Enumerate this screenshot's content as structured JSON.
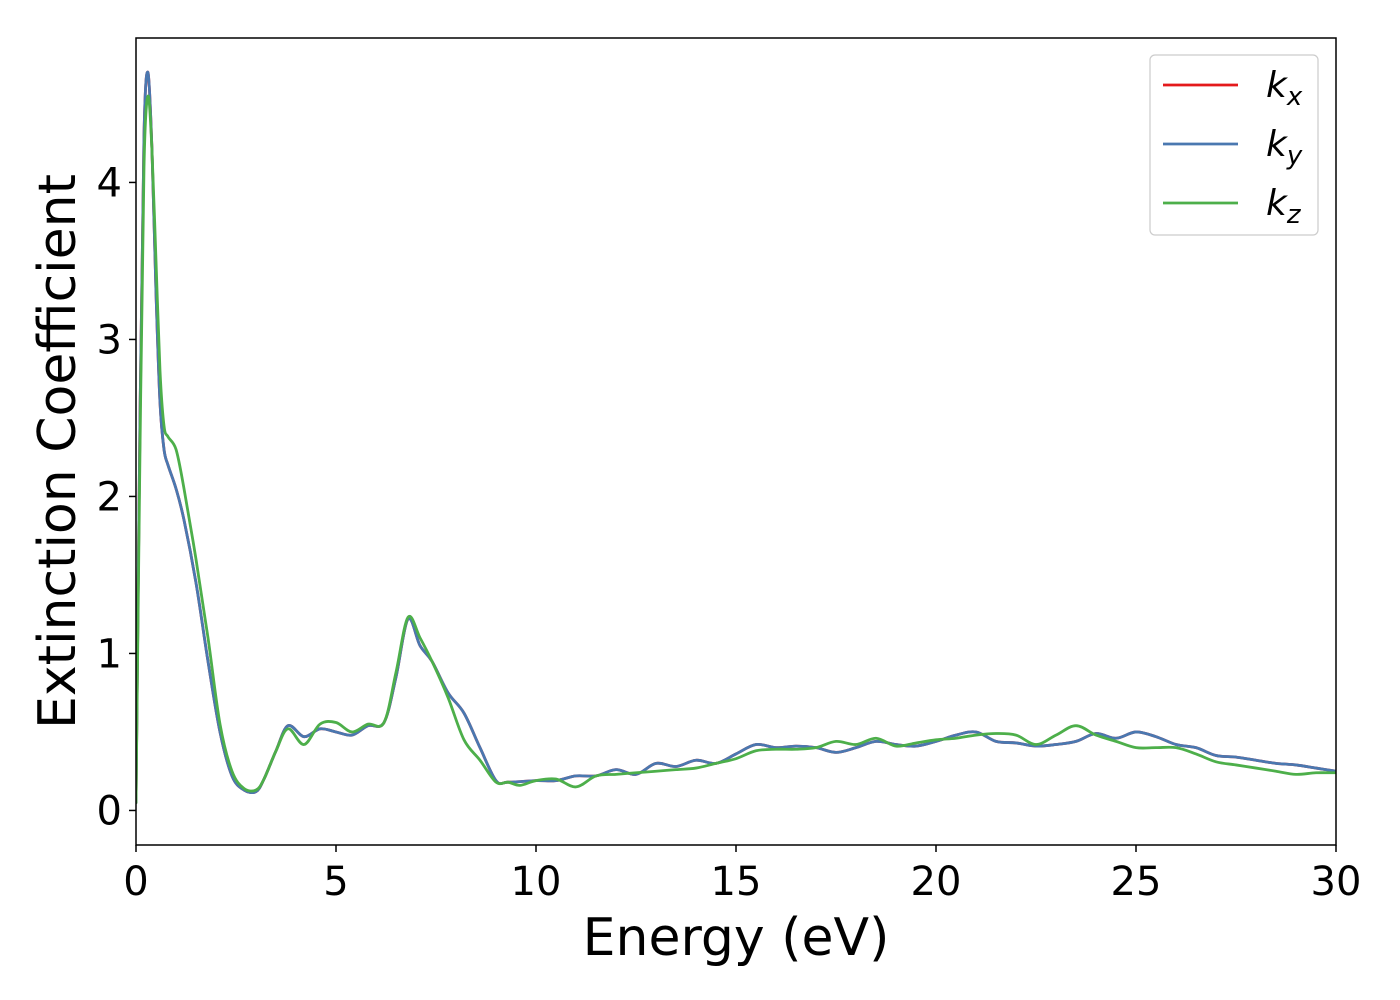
{
  "chart_data": {
    "type": "line",
    "title": "",
    "xlabel": "Energy (eV)",
    "ylabel": "Extinction Coefficient",
    "xlim": [
      0,
      30
    ],
    "ylim": [
      -0.22,
      4.92
    ],
    "xticks": [
      0,
      5,
      10,
      15,
      20,
      25,
      30
    ],
    "xtick_labels": [
      "0",
      "5",
      "10",
      "15",
      "20",
      "25",
      "30"
    ],
    "yticks": [
      0,
      1,
      2,
      3,
      4
    ],
    "ytick_labels": [
      "0",
      "1",
      "2",
      "3",
      "4"
    ],
    "grid": false,
    "legend_position": "top-right",
    "series": [
      {
        "name": "k_x",
        "legend_base": "k",
        "legend_sub": "x",
        "color": "#e41a1c",
        "x": [
          0,
          0.1,
          0.2,
          0.3,
          0.4,
          0.5,
          0.6,
          0.7,
          0.8,
          1.0,
          1.2,
          1.5,
          1.8,
          2.1,
          2.4,
          2.7,
          3.0,
          3.2,
          3.5,
          3.8,
          4.2,
          4.6,
          5.0,
          5.4,
          5.8,
          6.2,
          6.5,
          6.8,
          7.1,
          7.4,
          7.8,
          8.2,
          8.6,
          9.0,
          9.3,
          10.0,
          10.5,
          11.0,
          11.5,
          12.0,
          12.5,
          13.0,
          13.5,
          14.0,
          14.5,
          15.0,
          15.5,
          16.0,
          16.5,
          17.0,
          17.5,
          18.0,
          18.5,
          19.0,
          19.5,
          20.0,
          20.5,
          21.0,
          21.5,
          22.0,
          22.5,
          23.0,
          23.5,
          24.0,
          24.5,
          25.0,
          25.5,
          26.0,
          26.5,
          27.0,
          27.5,
          28.0,
          28.5,
          29.0,
          29.5,
          30.0
        ],
        "y": [
          0.05,
          2.5,
          4.3,
          4.7,
          4.2,
          3.3,
          2.6,
          2.3,
          2.2,
          2.05,
          1.85,
          1.45,
          0.95,
          0.5,
          0.22,
          0.13,
          0.12,
          0.2,
          0.38,
          0.54,
          0.47,
          0.52,
          0.5,
          0.48,
          0.54,
          0.56,
          0.85,
          1.22,
          1.05,
          0.95,
          0.75,
          0.62,
          0.4,
          0.19,
          0.18,
          0.19,
          0.19,
          0.22,
          0.22,
          0.26,
          0.23,
          0.3,
          0.28,
          0.32,
          0.3,
          0.36,
          0.42,
          0.4,
          0.41,
          0.4,
          0.37,
          0.4,
          0.44,
          0.42,
          0.41,
          0.44,
          0.48,
          0.5,
          0.44,
          0.43,
          0.41,
          0.42,
          0.44,
          0.49,
          0.46,
          0.5,
          0.47,
          0.42,
          0.4,
          0.35,
          0.34,
          0.32,
          0.3,
          0.29,
          0.27,
          0.25
        ]
      },
      {
        "name": "k_y",
        "legend_base": "k",
        "legend_sub": "y",
        "color": "#4a78b0",
        "x": [
          0,
          0.1,
          0.2,
          0.3,
          0.4,
          0.5,
          0.6,
          0.7,
          0.8,
          1.0,
          1.2,
          1.5,
          1.8,
          2.1,
          2.4,
          2.7,
          3.0,
          3.2,
          3.5,
          3.8,
          4.2,
          4.6,
          5.0,
          5.4,
          5.8,
          6.2,
          6.5,
          6.8,
          7.1,
          7.4,
          7.8,
          8.2,
          8.6,
          9.0,
          9.3,
          10.0,
          10.5,
          11.0,
          11.5,
          12.0,
          12.5,
          13.0,
          13.5,
          14.0,
          14.5,
          15.0,
          15.5,
          16.0,
          16.5,
          17.0,
          17.5,
          18.0,
          18.5,
          19.0,
          19.5,
          20.0,
          20.5,
          21.0,
          21.5,
          22.0,
          22.5,
          23.0,
          23.5,
          24.0,
          24.5,
          25.0,
          25.5,
          26.0,
          26.5,
          27.0,
          27.5,
          28.0,
          28.5,
          29.0,
          29.5,
          30.0
        ],
        "y": [
          0.05,
          2.5,
          4.3,
          4.7,
          4.2,
          3.3,
          2.6,
          2.3,
          2.2,
          2.05,
          1.85,
          1.45,
          0.95,
          0.5,
          0.22,
          0.13,
          0.12,
          0.2,
          0.38,
          0.54,
          0.47,
          0.52,
          0.5,
          0.48,
          0.54,
          0.56,
          0.85,
          1.22,
          1.05,
          0.95,
          0.75,
          0.62,
          0.4,
          0.19,
          0.18,
          0.19,
          0.19,
          0.22,
          0.22,
          0.26,
          0.23,
          0.3,
          0.28,
          0.32,
          0.3,
          0.36,
          0.42,
          0.4,
          0.41,
          0.4,
          0.37,
          0.4,
          0.44,
          0.42,
          0.41,
          0.44,
          0.48,
          0.5,
          0.44,
          0.43,
          0.41,
          0.42,
          0.44,
          0.49,
          0.46,
          0.5,
          0.47,
          0.42,
          0.4,
          0.35,
          0.34,
          0.32,
          0.3,
          0.29,
          0.27,
          0.25
        ]
      },
      {
        "name": "k_z",
        "legend_base": "k",
        "legend_sub": "z",
        "color": "#4daf4a",
        "x": [
          0,
          0.1,
          0.2,
          0.3,
          0.4,
          0.5,
          0.6,
          0.7,
          0.8,
          1.0,
          1.2,
          1.5,
          1.8,
          2.1,
          2.4,
          2.7,
          3.0,
          3.2,
          3.5,
          3.8,
          4.2,
          4.6,
          5.0,
          5.4,
          5.8,
          6.2,
          6.5,
          6.8,
          7.1,
          7.4,
          7.8,
          8.2,
          8.6,
          9.0,
          9.3,
          9.6,
          10.0,
          10.5,
          11.0,
          11.5,
          12.0,
          12.5,
          13.0,
          13.5,
          14.0,
          14.5,
          15.0,
          15.5,
          16.0,
          16.5,
          17.0,
          17.5,
          18.0,
          18.5,
          19.0,
          19.5,
          20.0,
          20.5,
          21.0,
          21.5,
          22.0,
          22.5,
          23.0,
          23.5,
          24.0,
          24.5,
          25.0,
          25.5,
          26.0,
          26.5,
          27.0,
          27.5,
          28.0,
          28.5,
          29.0,
          29.5,
          30.0
        ],
        "y": [
          0.05,
          2.3,
          4.1,
          4.55,
          4.2,
          3.5,
          2.8,
          2.45,
          2.38,
          2.3,
          2.05,
          1.6,
          1.1,
          0.55,
          0.25,
          0.14,
          0.13,
          0.2,
          0.38,
          0.52,
          0.42,
          0.55,
          0.56,
          0.5,
          0.55,
          0.56,
          0.88,
          1.23,
          1.1,
          0.95,
          0.72,
          0.45,
          0.32,
          0.18,
          0.18,
          0.16,
          0.19,
          0.2,
          0.15,
          0.22,
          0.23,
          0.24,
          0.25,
          0.26,
          0.27,
          0.3,
          0.33,
          0.38,
          0.39,
          0.39,
          0.4,
          0.44,
          0.42,
          0.46,
          0.41,
          0.43,
          0.45,
          0.46,
          0.48,
          0.49,
          0.48,
          0.42,
          0.48,
          0.54,
          0.48,
          0.44,
          0.4,
          0.4,
          0.4,
          0.36,
          0.31,
          0.29,
          0.27,
          0.25,
          0.23,
          0.24,
          0.24
        ]
      }
    ]
  }
}
